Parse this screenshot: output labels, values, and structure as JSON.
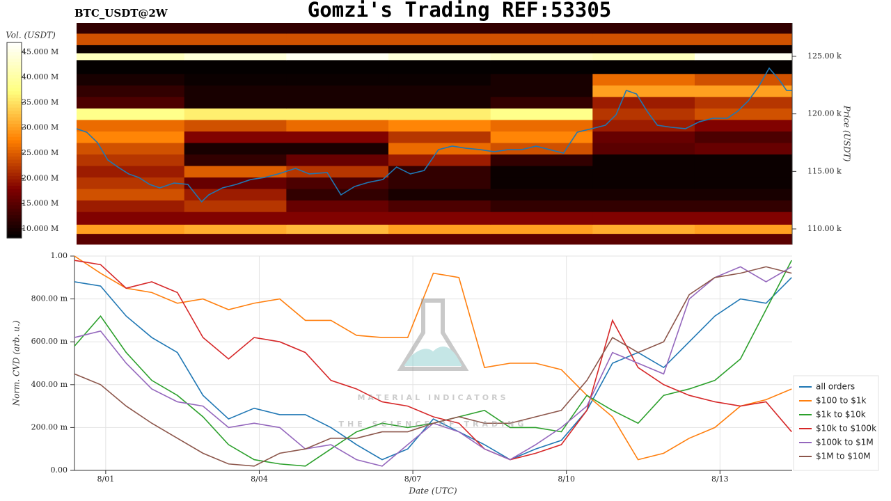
{
  "chart_data": [
    {
      "type": "heatmap",
      "title": "Gomzi's Trading REF:53305",
      "subtitle": "BTC_USDT@2W",
      "colorbar_label": "Vol. (USDT)",
      "ylabel": "Price (USDT)",
      "colormap": "afmhot",
      "xlim": [
        0.39,
        14.41
      ],
      "ylim": [
        108670,
        127900
      ],
      "yticks": [
        {
          "value": 110000,
          "label": "110.00 k"
        },
        {
          "value": 115000,
          "label": "115.00 k"
        },
        {
          "value": 120000,
          "label": "120.00 k"
        },
        {
          "value": 125000,
          "label": "125.00 k"
        }
      ],
      "clim": [
        8200000,
        46900000
      ],
      "cticks": [
        {
          "value": 10000000.0,
          "label": "10.000 M"
        },
        {
          "value": 15000000.0,
          "label": "15.000 M"
        },
        {
          "value": 20000000.0,
          "label": "20.000 M"
        },
        {
          "value": 25000000.0,
          "label": "25.000 M"
        },
        {
          "value": 30000000.0,
          "label": "30.000 M"
        },
        {
          "value": 35000000.0,
          "label": "35.000 M"
        },
        {
          "value": 40000000.0,
          "label": "40.000 M"
        },
        {
          "value": 45000000.0,
          "label": "45.000 M"
        }
      ],
      "x_edges": [
        0.39,
        2.5,
        4.5,
        6.5,
        8.5,
        10.5,
        12.5,
        14.41
      ],
      "y_edges": [
        108670,
        109600,
        110400,
        111500,
        112500,
        113500,
        114500,
        115500,
        116500,
        117500,
        118500,
        119500,
        120500,
        121500,
        122500,
        123500,
        124700,
        125300,
        126000,
        127000,
        127900
      ],
      "z": [
        [
          15000000.0,
          15000000.0,
          15000000.0,
          15000000.0,
          15000000.0,
          15000000.0,
          15000000.0
        ],
        [
          30000000.0,
          31000000.0,
          32000000.0,
          30000000.0,
          30000000.0,
          31000000.0,
          30000000.0
        ],
        [
          18000000.0,
          18000000.0,
          18000000.0,
          18000000.0,
          18000000.0,
          18000000.0,
          18000000.0
        ],
        [
          20000000.0,
          22000000.0,
          16000000.0,
          14000000.0,
          12000000.0,
          12000000.0,
          12000000.0
        ],
        [
          24000000.0,
          20000000.0,
          12000000.0,
          10000000.0,
          10000000.0,
          10000000.0,
          10000000.0
        ],
        [
          22000000.0,
          16000000.0,
          14000000.0,
          12000000.0,
          9000000.0,
          9000000.0,
          9000000.0
        ],
        [
          20000000.0,
          25000000.0,
          22000000.0,
          12000000.0,
          9000000.0,
          9000000.0,
          9000000.0
        ],
        [
          22000000.0,
          12000000.0,
          16000000.0,
          20000000.0,
          12000000.0,
          9000000.0,
          9000000.0
        ],
        [
          24000000.0,
          10000000.0,
          10000000.0,
          26000000.0,
          24000000.0,
          15000000.0,
          16000000.0
        ],
        [
          28000000.0,
          18000000.0,
          18000000.0,
          22000000.0,
          28000000.0,
          16000000.0,
          14000000.0
        ],
        [
          26000000.0,
          24000000.0,
          26000000.0,
          28000000.0,
          26000000.0,
          20000000.0,
          18000000.0
        ],
        [
          38000000.0,
          36000000.0,
          36000000.0,
          36000000.0,
          38000000.0,
          22000000.0,
          24000000.0
        ],
        [
          14000000.0,
          10000000.0,
          10000000.0,
          10000000.0,
          12000000.0,
          20000000.0,
          22000000.0
        ],
        [
          12000000.0,
          10000000.0,
          10000000.0,
          10000000.0,
          10000000.0,
          30000000.0,
          30000000.0
        ],
        [
          10000000.0,
          9000000.0,
          9000000.0,
          9000000.0,
          10000000.0,
          26000000.0,
          24000000.0
        ],
        [
          8500000.0,
          8500000.0,
          8500000.0,
          8500000.0,
          8500000.0,
          8500000.0,
          8500000.0
        ],
        [
          42000000.0,
          44000000.0,
          46000000.0,
          44000000.0,
          43000000.0,
          42000000.0,
          46000000.0
        ],
        [
          9000000.0,
          9000000.0,
          9000000.0,
          9000000.0,
          9000000.0,
          9000000.0,
          9000000.0
        ],
        [
          24000000.0,
          24000000.0,
          24000000.0,
          24000000.0,
          24000000.0,
          24000000.0,
          24000000.0
        ],
        [
          12000000.0,
          12000000.0,
          12000000.0,
          12000000.0,
          12000000.0,
          12000000.0,
          12000000.0
        ]
      ],
      "line": {
        "color": "#1f77b4",
        "x": [
          0.39,
          0.59,
          0.8,
          1.0,
          1.2,
          1.41,
          1.61,
          1.82,
          2.02,
          2.3,
          2.57,
          2.84,
          2.98,
          3.25,
          3.52,
          3.8,
          4.07,
          4.34,
          4.68,
          4.95,
          5.3,
          5.57,
          5.84,
          6.11,
          6.39,
          6.66,
          6.93,
          7.2,
          7.48,
          7.75,
          8.02,
          8.3,
          8.57,
          8.84,
          9.11,
          9.39,
          9.66,
          9.93,
          10.2,
          10.48,
          10.75,
          10.96,
          11.16,
          11.36,
          11.57,
          11.77,
          12.05,
          12.32,
          12.59,
          12.86,
          13.14,
          13.34,
          13.55,
          13.75,
          13.96,
          14.16,
          14.3,
          14.41
        ],
        "values": [
          118710,
          118400,
          117500,
          116000,
          115380,
          114780,
          114470,
          113870,
          113570,
          113990,
          113870,
          112360,
          112960,
          113570,
          113870,
          114290,
          114470,
          114780,
          115260,
          114780,
          114900,
          112960,
          113690,
          114050,
          114290,
          115380,
          114780,
          115080,
          116890,
          117200,
          117010,
          116890,
          116710,
          116890,
          116890,
          117200,
          116890,
          116590,
          118410,
          118710,
          119010,
          119920,
          122040,
          121730,
          120220,
          119010,
          118830,
          118710,
          119310,
          119620,
          119620,
          120220,
          121130,
          122340,
          123970,
          122940,
          122040,
          122040
        ]
      }
    },
    {
      "type": "line",
      "xlabel": "Date (UTC)",
      "ylabel": "Norm. CVD (arb. u.)",
      "grid": true,
      "legend": "lower right",
      "watermark": [
        "MATERIAL INDICATORS",
        "THE SCIENCE OF TRADING"
      ],
      "xlim": [
        0.39,
        14.41
      ],
      "ylim": [
        0,
        1
      ],
      "xticks": [
        {
          "value": 1,
          "label": "8/01"
        },
        {
          "value": 4,
          "label": "8/04"
        },
        {
          "value": 7,
          "label": "8/07"
        },
        {
          "value": 10,
          "label": "8/10"
        },
        {
          "value": 13,
          "label": "8/13"
        }
      ],
      "yticks": [
        {
          "value": 0,
          "label": "0.00"
        },
        {
          "value": 0.2,
          "label": "200.00 m"
        },
        {
          "value": 0.4,
          "label": "400.00 m"
        },
        {
          "value": 0.6,
          "label": "600.00 m"
        },
        {
          "value": 0.8,
          "label": "800.00 m"
        },
        {
          "value": 1,
          "label": "1.00"
        }
      ],
      "x": [
        0.39,
        0.9,
        1.4,
        1.9,
        2.4,
        2.9,
        3.4,
        3.9,
        4.4,
        4.9,
        5.4,
        5.9,
        6.4,
        6.9,
        7.4,
        7.9,
        8.4,
        8.9,
        9.4,
        9.9,
        10.4,
        10.9,
        11.4,
        11.9,
        12.4,
        12.9,
        13.4,
        13.9,
        14.4
      ],
      "series": [
        {
          "name": "all orders",
          "color": "#1f77b4",
          "values": [
            0.88,
            0.86,
            0.72,
            0.62,
            0.55,
            0.35,
            0.24,
            0.29,
            0.26,
            0.26,
            0.2,
            0.12,
            0.05,
            0.1,
            0.24,
            0.18,
            0.12,
            0.05,
            0.1,
            0.14,
            0.28,
            0.5,
            0.55,
            0.48,
            0.6,
            0.72,
            0.8,
            0.78,
            0.9
          ]
        },
        {
          "name": "$100 to $1k",
          "color": "#ff7f0e",
          "values": [
            1.0,
            0.92,
            0.85,
            0.83,
            0.78,
            0.8,
            0.75,
            0.78,
            0.8,
            0.7,
            0.7,
            0.63,
            0.62,
            0.62,
            0.92,
            0.9,
            0.48,
            0.5,
            0.5,
            0.47,
            0.35,
            0.25,
            0.05,
            0.08,
            0.15,
            0.2,
            0.3,
            0.33,
            0.38
          ]
        },
        {
          "name": "$1k to $10k",
          "color": "#2ca02c",
          "values": [
            0.58,
            0.72,
            0.55,
            0.42,
            0.35,
            0.25,
            0.12,
            0.05,
            0.03,
            0.02,
            0.1,
            0.18,
            0.22,
            0.2,
            0.22,
            0.25,
            0.28,
            0.2,
            0.2,
            0.18,
            0.35,
            0.28,
            0.22,
            0.35,
            0.38,
            0.42,
            0.52,
            0.75,
            0.98
          ]
        },
        {
          "name": "$10k to $100k",
          "color": "#d62728",
          "values": [
            0.98,
            0.96,
            0.85,
            0.88,
            0.83,
            0.62,
            0.52,
            0.62,
            0.6,
            0.55,
            0.42,
            0.38,
            0.32,
            0.3,
            0.25,
            0.22,
            0.1,
            0.05,
            0.08,
            0.12,
            0.28,
            0.7,
            0.48,
            0.4,
            0.35,
            0.32,
            0.3,
            0.32,
            0.18
          ]
        },
        {
          "name": "$100k to $1M",
          "color": "#9467bd",
          "values": [
            0.62,
            0.65,
            0.5,
            0.38,
            0.32,
            0.3,
            0.2,
            0.22,
            0.2,
            0.1,
            0.12,
            0.05,
            0.02,
            0.12,
            0.22,
            0.18,
            0.1,
            0.05,
            0.12,
            0.2,
            0.3,
            0.55,
            0.5,
            0.45,
            0.8,
            0.9,
            0.95,
            0.88,
            0.95
          ]
        },
        {
          "name": "$1M to $10M",
          "color": "#8c564b",
          "values": [
            0.45,
            0.4,
            0.3,
            0.22,
            0.15,
            0.08,
            0.03,
            0.02,
            0.08,
            0.1,
            0.15,
            0.15,
            0.18,
            0.18,
            0.22,
            0.25,
            0.22,
            0.22,
            0.25,
            0.28,
            0.42,
            0.62,
            0.55,
            0.6,
            0.82,
            0.9,
            0.92,
            0.95,
            0.92
          ]
        }
      ]
    }
  ]
}
